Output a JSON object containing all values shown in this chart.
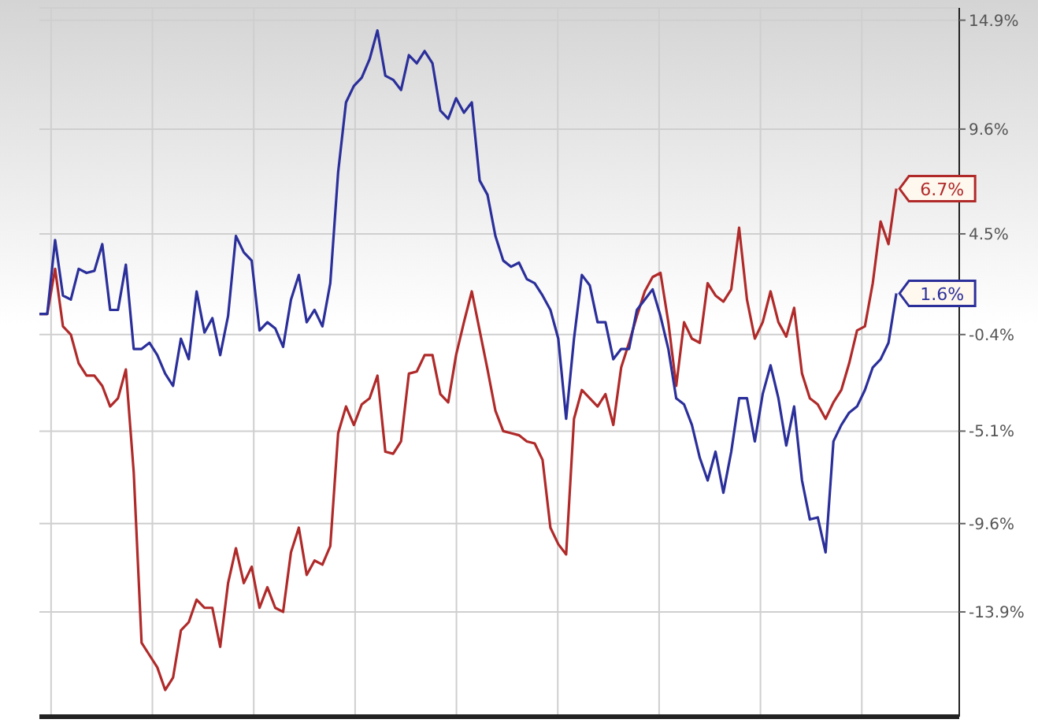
{
  "chart_data": {
    "type": "line",
    "categories": [
      null,
      null,
      null,
      null,
      null,
      null,
      null,
      null,
      null,
      null,
      null,
      null,
      null,
      null,
      null,
      null,
      null,
      null,
      null,
      null,
      null,
      null,
      null,
      null,
      null,
      null,
      null,
      null,
      null,
      null,
      null,
      null,
      null,
      null,
      null,
      null,
      null,
      null,
      null,
      null,
      null,
      null,
      null,
      null,
      null,
      null,
      null,
      null,
      null,
      null,
      null,
      null,
      null,
      null,
      null,
      null,
      null,
      null,
      null,
      null,
      null,
      null,
      null,
      null,
      null,
      null,
      null,
      null,
      null,
      null,
      null,
      null,
      null,
      null,
      null,
      null,
      null,
      null,
      null,
      null,
      null,
      null,
      null,
      null,
      null,
      null,
      null,
      null,
      null,
      null,
      null,
      null,
      null,
      null,
      null,
      null,
      null,
      null,
      null,
      null,
      null,
      null,
      null,
      null,
      null,
      null,
      null,
      null,
      null,
      null,
      null,
      null,
      null,
      null,
      null,
      null,
      null,
      null
    ],
    "series": [
      {
        "color": "#b02a2a",
        "values": [
          0.6,
          0.6,
          2.8,
          0.0,
          -0.4,
          -1.8,
          -2.4,
          -2.4,
          -2.9,
          -3.9,
          -3.5,
          -2.1,
          -7.1,
          -15.4,
          -16.0,
          -16.6,
          -17.7,
          -17.1,
          -14.8,
          -14.4,
          -13.3,
          -13.7,
          -13.7,
          -15.6,
          -12.5,
          -10.8,
          -12.5,
          -11.7,
          -13.7,
          -12.7,
          -13.7,
          -13.9,
          -11.0,
          -9.8,
          -12.1,
          -11.4,
          -11.6,
          -10.7,
          -5.2,
          -3.9,
          -4.8,
          -3.8,
          -3.5,
          -2.4,
          -6.1,
          -6.2,
          -5.6,
          -2.3,
          -2.2,
          -1.4,
          -1.4,
          -3.3,
          -3.7,
          -1.4,
          0.2,
          1.7,
          -0.2,
          -2.1,
          -4.1,
          -5.1,
          -5.2,
          -5.3,
          -5.6,
          -5.7,
          -6.5,
          -9.8,
          -10.6,
          -11.1,
          -4.5,
          -3.1,
          -3.5,
          -3.9,
          -3.3,
          -4.8,
          -2.0,
          -0.8,
          0.5,
          1.7,
          2.4,
          2.6,
          0.2,
          -2.9,
          0.2,
          -0.6,
          -0.8,
          2.1,
          1.5,
          1.2,
          1.8,
          4.8,
          1.3,
          -0.6,
          0.2,
          1.7,
          0.2,
          -0.5,
          0.9,
          -2.3,
          -3.5,
          -3.8,
          -4.5,
          -3.7,
          -3.1,
          -1.8,
          -0.2,
          0.0,
          2.1,
          5.1,
          4.0,
          6.7,
          null,
          null,
          null,
          null,
          null,
          null,
          null,
          null
        ]
      },
      {
        "color": "#2b2f9a",
        "values": [
          0.6,
          0.6,
          4.2,
          1.5,
          1.3,
          2.8,
          2.6,
          2.7,
          4.0,
          0.8,
          0.8,
          3.0,
          -1.1,
          -1.1,
          -0.8,
          -1.4,
          -2.3,
          -2.9,
          -0.6,
          -1.6,
          1.7,
          -0.3,
          0.4,
          -1.4,
          0.5,
          4.4,
          3.6,
          3.2,
          -0.2,
          0.2,
          -0.1,
          -1.0,
          1.3,
          2.5,
          0.2,
          0.8,
          0.0,
          2.1,
          7.5,
          10.9,
          11.7,
          12.1,
          13.0,
          14.4,
          12.2,
          12.0,
          11.5,
          13.2,
          12.8,
          13.4,
          12.8,
          10.5,
          10.1,
          11.1,
          10.4,
          10.9,
          7.1,
          6.4,
          4.4,
          3.2,
          2.9,
          3.1,
          2.3,
          2.1,
          1.5,
          0.8,
          -0.6,
          -4.5,
          -0.6,
          2.5,
          2.0,
          0.2,
          0.2,
          -1.6,
          -1.1,
          -1.1,
          0.8,
          1.3,
          1.8,
          0.5,
          -1.1,
          -3.5,
          -3.8,
          -4.8,
          -6.4,
          -7.5,
          -6.1,
          -8.1,
          -6.1,
          -3.5,
          -3.5,
          -5.6,
          -3.3,
          -1.9,
          -3.5,
          -5.8,
          -3.9,
          -7.5,
          -9.4,
          -9.3,
          -11.0,
          -5.6,
          -4.8,
          -4.2,
          -3.9,
          -3.1,
          -2.0,
          -1.6,
          -0.8,
          1.6,
          null,
          null,
          null,
          null,
          null,
          null,
          null,
          null
        ]
      }
    ],
    "ylim": [
      -19,
      15.5
    ],
    "yticks": [
      {
        "value": 14.9,
        "label": "14.9%"
      },
      {
        "value": 9.6,
        "label": "9.6%"
      },
      {
        "value": 4.5,
        "label": "4.5%"
      },
      {
        "value": -0.4,
        "label": "-0.4%"
      },
      {
        "value": -5.1,
        "label": "-5.1%"
      },
      {
        "value": -9.6,
        "label": "-9.6%"
      },
      {
        "value": -13.9,
        "label": "-13.9%"
      }
    ],
    "tick_labels": "y",
    "grid": true,
    "marker": "none",
    "line_style": "solid",
    "annotations": [
      "6.7%",
      "1.6%"
    ]
  }
}
